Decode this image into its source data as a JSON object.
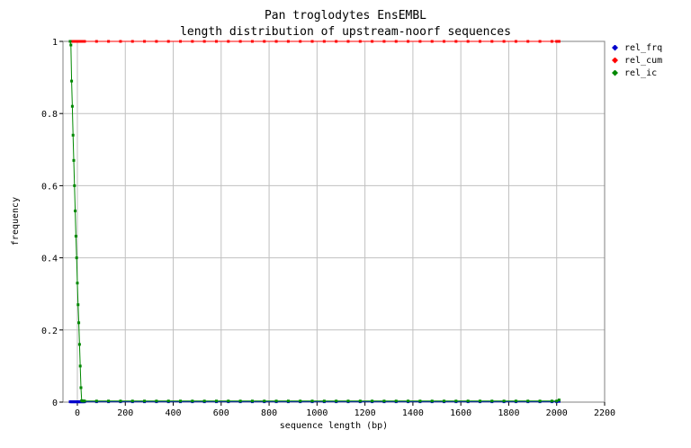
{
  "chart_data": {
    "type": "line",
    "title": "Pan troglodytes EnsEMBL",
    "subtitle": "length distribution of upstream-noorf sequences",
    "xlabel": "sequence length (bp)",
    "ylabel": "frequency",
    "xlim": [
      -60,
      2200
    ],
    "ylim": [
      0,
      1
    ],
    "xticks": [
      "0",
      "200",
      "400",
      "600",
      "800",
      "1000",
      "1200",
      "1400",
      "1600",
      "1800",
      "2000",
      "2200"
    ],
    "yticks": [
      "0",
      "0.2",
      "0.4",
      "0.6",
      "0.8",
      "1"
    ],
    "grid": true,
    "legend_position": "right",
    "x": [
      -30,
      -27,
      -24,
      -21,
      -18,
      -15,
      -12,
      -9,
      -6,
      -3,
      0,
      3,
      6,
      9,
      12,
      15,
      18,
      21,
      24,
      27,
      30,
      80,
      130,
      180,
      230,
      280,
      330,
      380,
      430,
      480,
      530,
      580,
      630,
      680,
      730,
      780,
      830,
      880,
      930,
      980,
      1030,
      1080,
      1130,
      1180,
      1230,
      1280,
      1330,
      1380,
      1430,
      1480,
      1530,
      1580,
      1630,
      1680,
      1730,
      1780,
      1830,
      1880,
      1930,
      1980,
      2000,
      2010
    ],
    "series": [
      {
        "name": "rel_frq",
        "color": "#0000cc",
        "values": [
          0.001,
          0.001,
          0.001,
          0.001,
          0.001,
          0.001,
          0.001,
          0.001,
          0.001,
          0.001,
          0.001,
          0.001,
          0.001,
          0.001,
          0.001,
          0.001,
          0.001,
          0.001,
          0.001,
          0.001,
          0.001,
          0.001,
          0.001,
          0.001,
          0.001,
          0.001,
          0.001,
          0.001,
          0.001,
          0.001,
          0.001,
          0.001,
          0.001,
          0.001,
          0.001,
          0.001,
          0.001,
          0.001,
          0.001,
          0.001,
          0.001,
          0.001,
          0.001,
          0.001,
          0.001,
          0.001,
          0.001,
          0.001,
          0.001,
          0.001,
          0.001,
          0.001,
          0.001,
          0.001,
          0.001,
          0.001,
          0.001,
          0.001,
          0.001,
          0.001,
          0.001,
          0.002
        ]
      },
      {
        "name": "rel_cum",
        "color": "#ff0000",
        "values": [
          1,
          1,
          1,
          1,
          1,
          1,
          1,
          1,
          1,
          1,
          1,
          1,
          1,
          1,
          1,
          1,
          1,
          1,
          1,
          1,
          1,
          1,
          1,
          1,
          1,
          1,
          1,
          1,
          1,
          1,
          1,
          1,
          1,
          1,
          1,
          1,
          1,
          1,
          1,
          1,
          1,
          1,
          1,
          1,
          1,
          1,
          1,
          1,
          1,
          1,
          1,
          1,
          1,
          1,
          1,
          1,
          1,
          1,
          1,
          1,
          1,
          1
        ]
      },
      {
        "name": "rel_ic",
        "color": "#008800",
        "values": [
          1.0,
          0.99,
          0.89,
          0.82,
          0.74,
          0.67,
          0.6,
          0.53,
          0.46,
          0.4,
          0.33,
          0.27,
          0.22,
          0.16,
          0.1,
          0.04,
          0.004,
          0.003,
          0.003,
          0.003,
          0.003,
          0.003,
          0.003,
          0.003,
          0.003,
          0.003,
          0.003,
          0.003,
          0.003,
          0.003,
          0.003,
          0.003,
          0.003,
          0.003,
          0.003,
          0.003,
          0.003,
          0.003,
          0.003,
          0.003,
          0.003,
          0.003,
          0.003,
          0.003,
          0.003,
          0.003,
          0.003,
          0.003,
          0.003,
          0.003,
          0.003,
          0.003,
          0.003,
          0.003,
          0.003,
          0.003,
          0.003,
          0.003,
          0.003,
          0.003,
          0.003,
          0.006
        ]
      }
    ]
  }
}
